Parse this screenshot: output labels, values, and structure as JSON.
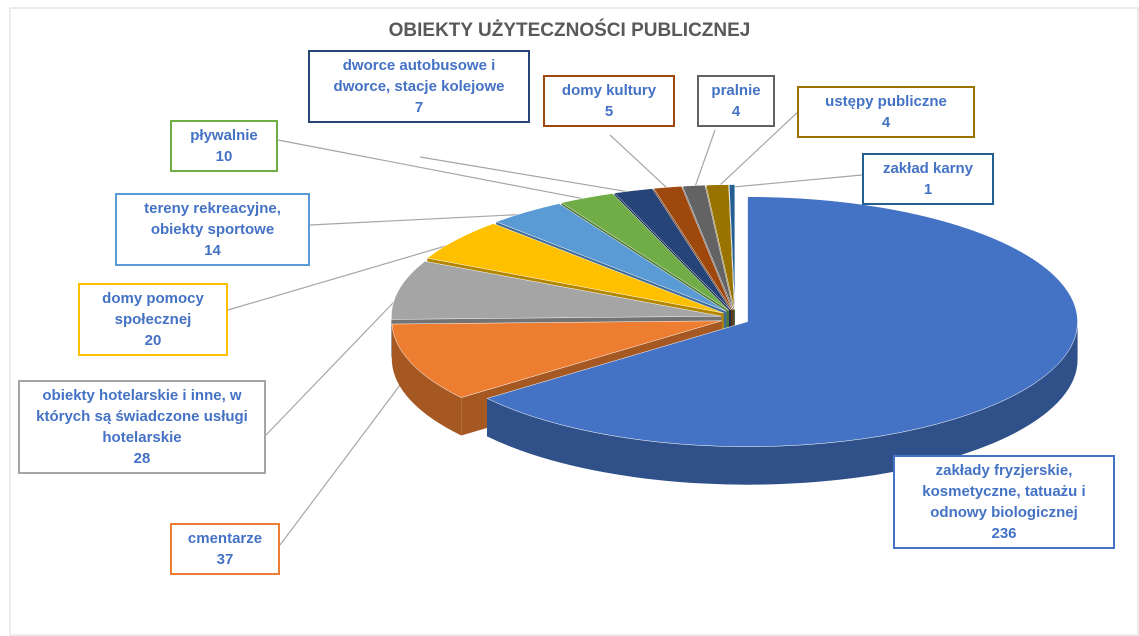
{
  "chart_data": {
    "type": "pie",
    "title": "OBIEKTY UŻYTECZNOŚCI PUBLICZNEJ",
    "categories": [
      "zakłady fryzjerskie, kosmetyczne, tatuażu i odnowy biologicznej",
      "cmentarze",
      "obiekty hotelarskie i inne, w których są świadczone usługi hotelarskie",
      "domy pomocy społecznej",
      "tereny rekreacyjne, obiekty sportowe",
      "pływalnie",
      "dworce autobusowe i dworce, stacje kolejowe",
      "domy kultury",
      "pralnie",
      "ustępy publiczne",
      "zakład karny"
    ],
    "values": [
      236,
      37,
      28,
      20,
      14,
      10,
      7,
      5,
      4,
      4,
      1
    ],
    "colors": [
      "#4472c4",
      "#ed7d31",
      "#a5a5a5",
      "#ffc000",
      "#5b9bd5",
      "#70ad47",
      "#264478",
      "#9e480e",
      "#636363",
      "#997300",
      "#255e91"
    ]
  }
}
